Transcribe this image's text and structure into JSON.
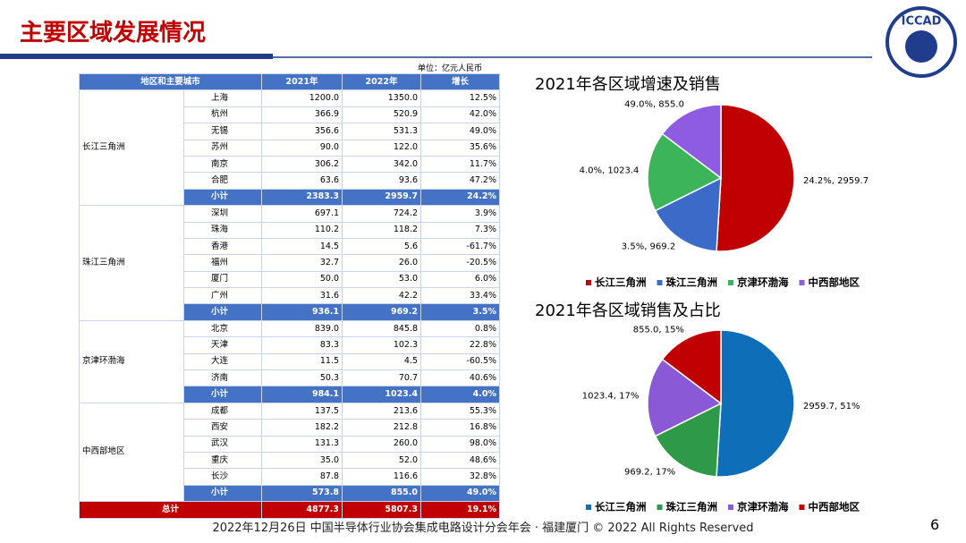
{
  "header": {
    "title": "主要区域发展情况",
    "logo": "ICCAD"
  },
  "table": {
    "unit": "单位：亿元人民币",
    "columns": [
      "地区和主要城市",
      "2021年",
      "2022年",
      "增长"
    ],
    "groups": [
      {
        "region": "长江三角洲",
        "rows": [
          [
            "上海",
            "1200.0",
            "1350.0",
            "12.5%"
          ],
          [
            "杭州",
            "366.9",
            "520.9",
            "42.0%"
          ],
          [
            "无锡",
            "356.6",
            "531.3",
            "49.0%"
          ],
          [
            "苏州",
            "90.0",
            "122.0",
            "35.6%"
          ],
          [
            "南京",
            "306.2",
            "342.0",
            "11.7%"
          ],
          [
            "合肥",
            "63.6",
            "93.6",
            "47.2%"
          ]
        ],
        "subtotal": [
          "小计",
          "2383.3",
          "2959.7",
          "24.2%"
        ]
      },
      {
        "region": "珠江三角洲",
        "rows": [
          [
            "深圳",
            "697.1",
            "724.2",
            "3.9%"
          ],
          [
            "珠海",
            "110.2",
            "118.2",
            "7.3%"
          ],
          [
            "香港",
            "14.5",
            "5.6",
            "-61.7%"
          ],
          [
            "福州",
            "32.7",
            "26.0",
            "-20.5%"
          ],
          [
            "厦门",
            "50.0",
            "53.0",
            "6.0%"
          ],
          [
            "广州",
            "31.6",
            "42.2",
            "33.4%"
          ]
        ],
        "subtotal": [
          "小计",
          "936.1",
          "969.2",
          "3.5%"
        ]
      },
      {
        "region": "京津环渤海",
        "rows": [
          [
            "北京",
            "839.0",
            "845.8",
            "0.8%"
          ],
          [
            "天津",
            "83.3",
            "102.3",
            "22.8%"
          ],
          [
            "大连",
            "11.5",
            "4.5",
            "-60.5%"
          ],
          [
            "济南",
            "50.3",
            "70.7",
            "40.6%"
          ]
        ],
        "subtotal": [
          "小计",
          "984.1",
          "1023.4",
          "4.0%"
        ]
      },
      {
        "region": "中西部地区",
        "rows": [
          [
            "成都",
            "137.5",
            "213.6",
            "55.3%"
          ],
          [
            "西安",
            "182.2",
            "212.8",
            "16.8%"
          ],
          [
            "武汉",
            "131.3",
            "260.0",
            "98.0%"
          ],
          [
            "重庆",
            "35.0",
            "52.0",
            "48.6%"
          ],
          [
            "长沙",
            "87.8",
            "116.6",
            "32.8%"
          ]
        ],
        "subtotal": [
          "小计",
          "573.8",
          "855.0",
          "49.0%"
        ]
      }
    ],
    "total": [
      "总计",
      "4877.3",
      "5807.3",
      "19.1%"
    ]
  },
  "chart_data": [
    {
      "type": "pie",
      "title": "2021年各区域增速及销售",
      "categories": [
        "长江三角洲",
        "珠江三角洲",
        "京津环渤海",
        "中西部地区"
      ],
      "values": [
        2959.7,
        969.2,
        1023.4,
        855.0
      ],
      "value_labels": [
        "24.2%, 2959.7",
        "3.5%, 969.2",
        "4.0%, 1023.4",
        "49.0%, 855.0"
      ],
      "colors": [
        "#c00000",
        "#3a6bc9",
        "#3cb55a",
        "#8e5ce0"
      ]
    },
    {
      "type": "pie",
      "title": "2021年各区域销售及占比",
      "categories": [
        "长江三角洲",
        "珠江三角洲",
        "京津环渤海",
        "中西部地区"
      ],
      "values": [
        2959.7,
        969.2,
        1023.4,
        855.0
      ],
      "value_labels": [
        "2959.7, 51%",
        "969.2, 17%",
        "1023.4, 17%",
        "855.0, 15%"
      ],
      "colors": [
        "#0e6eb8",
        "#2e9a48",
        "#8a5ad6",
        "#c00000"
      ]
    }
  ],
  "footer": {
    "text": "2022年12月26日 中国半导体行业协会集成电路设计分会年会 · 福建厦门 © 2022 All Rights Reserved",
    "page": "6"
  }
}
